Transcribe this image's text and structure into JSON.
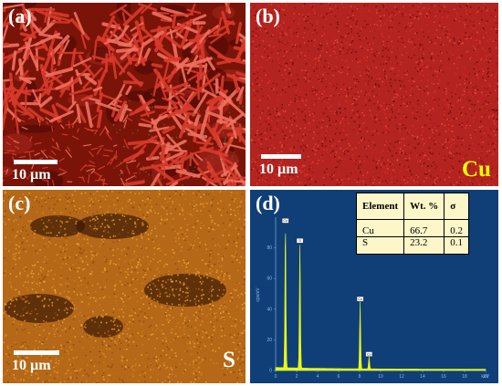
{
  "panels": {
    "a": {
      "letter": "(a)",
      "scale": "10 µm"
    },
    "b": {
      "letter": "(b)",
      "scale": "10 µm",
      "element": "Cu",
      "element_color": "#ffff00"
    },
    "c": {
      "letter": "(c)",
      "scale": "10 µm",
      "element": "S",
      "element_color": "#ffffff"
    },
    "d": {
      "letter": "(d)"
    }
  },
  "colors": {
    "sem_red": "#d93a2b",
    "cu_map": "#c0271f",
    "s_map": "#d9861d",
    "eds_background": "#103f78",
    "eds_spectrum": "#e6f51a"
  },
  "eds_table": {
    "headers": [
      "Element",
      "Wt. %",
      "σ"
    ],
    "rows": [
      {
        "element": "Cu",
        "wt": "66.7",
        "sigma": "0.2"
      },
      {
        "element": "S",
        "wt": "23.2",
        "sigma": "0.1"
      }
    ]
  },
  "spectrum": {
    "ylabel": "cps/eV",
    "xlabel": "keV",
    "x_ticks": [
      "0",
      "2",
      "4",
      "6",
      "8",
      "10",
      "12",
      "14",
      "16",
      "18",
      "20"
    ],
    "y_ticks": [
      "0",
      "20",
      "40",
      "60",
      "80"
    ],
    "xlim": [
      0,
      20
    ],
    "ylim": [
      0,
      100
    ],
    "peaks": [
      {
        "label": "Cu",
        "x": 0.93,
        "y": 95
      },
      {
        "label": "S",
        "x": 2.31,
        "y": 82
      },
      {
        "label": "Cu",
        "x": 8.05,
        "y": 44
      },
      {
        "label": "Cu",
        "x": 8.9,
        "y": 8
      }
    ]
  }
}
